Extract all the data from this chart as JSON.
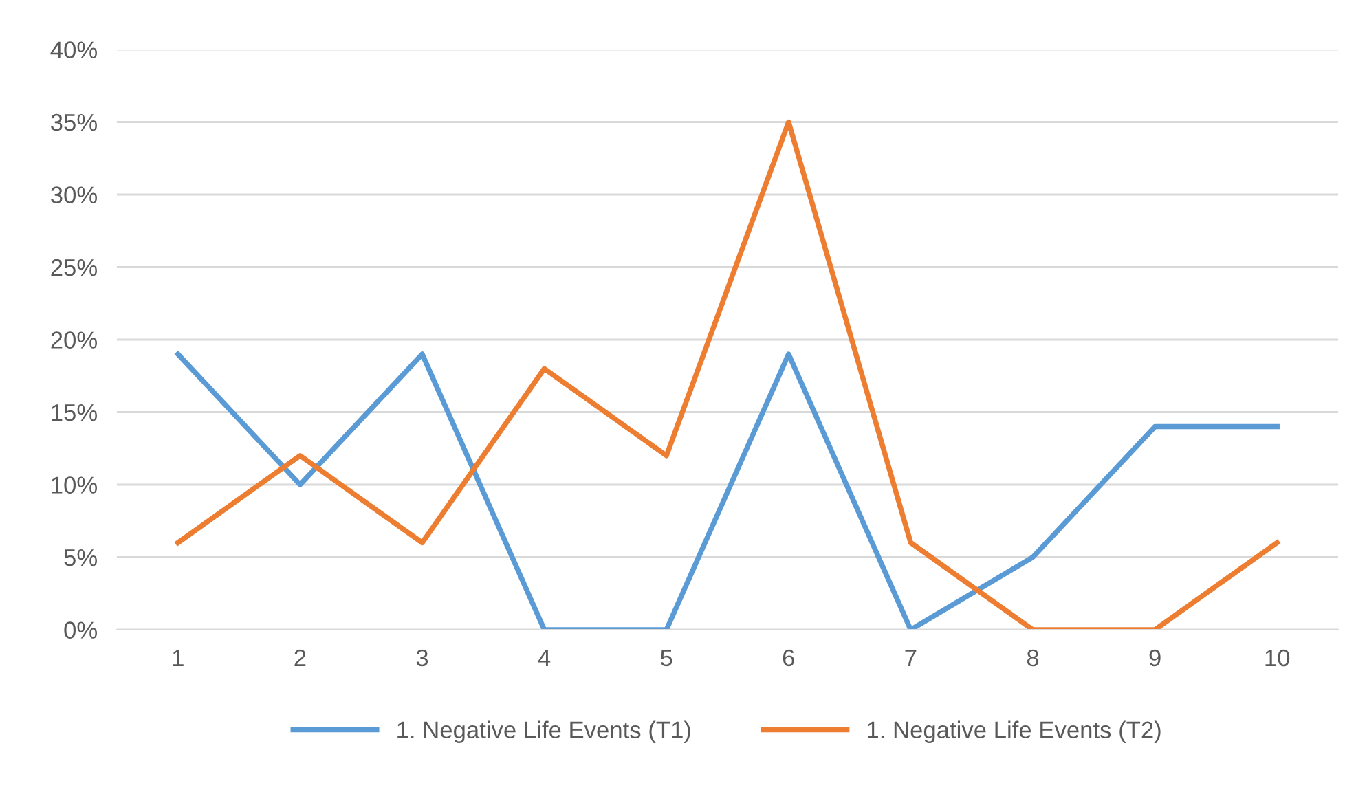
{
  "chart_data": {
    "type": "line",
    "categories": [
      "1",
      "2",
      "3",
      "4",
      "5",
      "6",
      "7",
      "8",
      "9",
      "10"
    ],
    "series": [
      {
        "name": "1. Negative Life Events (T1)",
        "color": "#5b9bd5",
        "values": [
          19,
          10,
          19,
          0,
          0,
          19,
          0,
          5,
          14,
          14
        ]
      },
      {
        "name": "1. Negative Life Events (T2)",
        "color": "#ed7d31",
        "values": [
          6,
          12,
          6,
          18,
          12,
          35,
          6,
          0,
          0,
          6
        ]
      }
    ],
    "ylim": [
      0,
      40
    ],
    "yticks": [
      {
        "value": 0,
        "label": "0%"
      },
      {
        "value": 5,
        "label": "5%"
      },
      {
        "value": 10,
        "label": "10%"
      },
      {
        "value": 15,
        "label": "15%"
      },
      {
        "value": 20,
        "label": "20%"
      },
      {
        "value": 25,
        "label": "25%"
      },
      {
        "value": 30,
        "label": "30%"
      },
      {
        "value": 35,
        "label": "35%"
      },
      {
        "value": 40,
        "label": "40%"
      }
    ],
    "grid": "y",
    "legend": "bottom",
    "marker": "none",
    "line_style": "solid"
  }
}
